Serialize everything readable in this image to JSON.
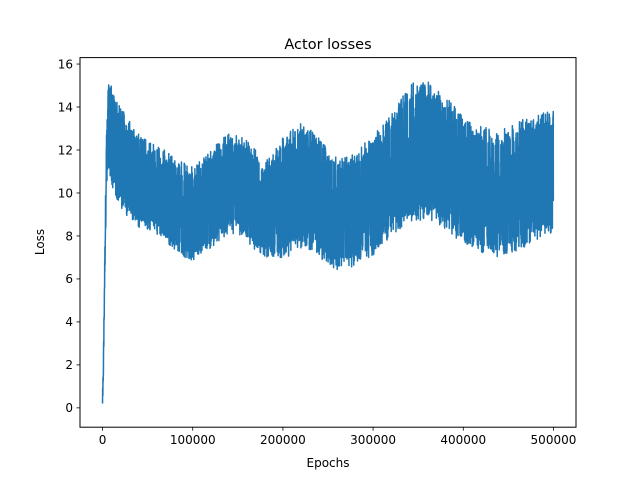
{
  "chart_data": {
    "type": "line",
    "title": "Actor losses",
    "xlabel": "Epochs",
    "ylabel": "Loss",
    "xlim": [
      -25000,
      525000
    ],
    "ylim": [
      -0.9,
      16.3
    ],
    "xticks": [
      0,
      100000,
      200000,
      300000,
      400000,
      500000
    ],
    "xtick_labels": [
      "0",
      "100000",
      "200000",
      "300000",
      "400000",
      "500000"
    ],
    "yticks": [
      0,
      2,
      4,
      6,
      8,
      10,
      12,
      14,
      16
    ],
    "ytick_labels": [
      "0",
      "2",
      "4",
      "6",
      "8",
      "10",
      "12",
      "14",
      "16"
    ],
    "grid": false,
    "legend": "none",
    "series": [
      {
        "color": "#1f77b4",
        "x": [
          0,
          1000,
          2000,
          3000,
          4000,
          5000,
          6000,
          7000,
          8000,
          9000,
          10000,
          15000,
          20000,
          30000,
          40000,
          50000,
          60000,
          70000,
          80000,
          90000,
          100000,
          120000,
          140000,
          160000,
          180000,
          200000,
          220000,
          240000,
          260000,
          280000,
          300000,
          320000,
          340000,
          360000,
          380000,
          400000,
          420000,
          440000,
          460000,
          480000,
          500000
        ],
        "upper": [
          0.8,
          2.5,
          6.0,
          9.0,
          12.5,
          13.5,
          14.8,
          15.3,
          15.3,
          15.1,
          15.0,
          14.5,
          14.0,
          13.4,
          12.8,
          12.4,
          12.2,
          12.0,
          11.6,
          11.4,
          11.2,
          12.0,
          12.8,
          12.6,
          11.4,
          12.6,
          13.3,
          12.6,
          11.6,
          11.8,
          12.8,
          13.6,
          15.1,
          15.2,
          14.6,
          13.6,
          13.1,
          12.9,
          13.3,
          13.7,
          13.8
        ],
        "lower": [
          -0.1,
          1.5,
          4.5,
          7.0,
          9.5,
          10.5,
          11.0,
          11.0,
          10.7,
          10.5,
          10.3,
          9.8,
          9.3,
          8.8,
          8.4,
          8.3,
          8.1,
          7.8,
          7.3,
          7.0,
          6.8,
          7.4,
          8.1,
          7.6,
          7.0,
          6.9,
          7.4,
          7.0,
          6.4,
          6.6,
          7.1,
          8.0,
          8.6,
          8.8,
          8.3,
          7.6,
          7.2,
          7.0,
          7.3,
          7.8,
          8.2
        ]
      }
    ]
  }
}
